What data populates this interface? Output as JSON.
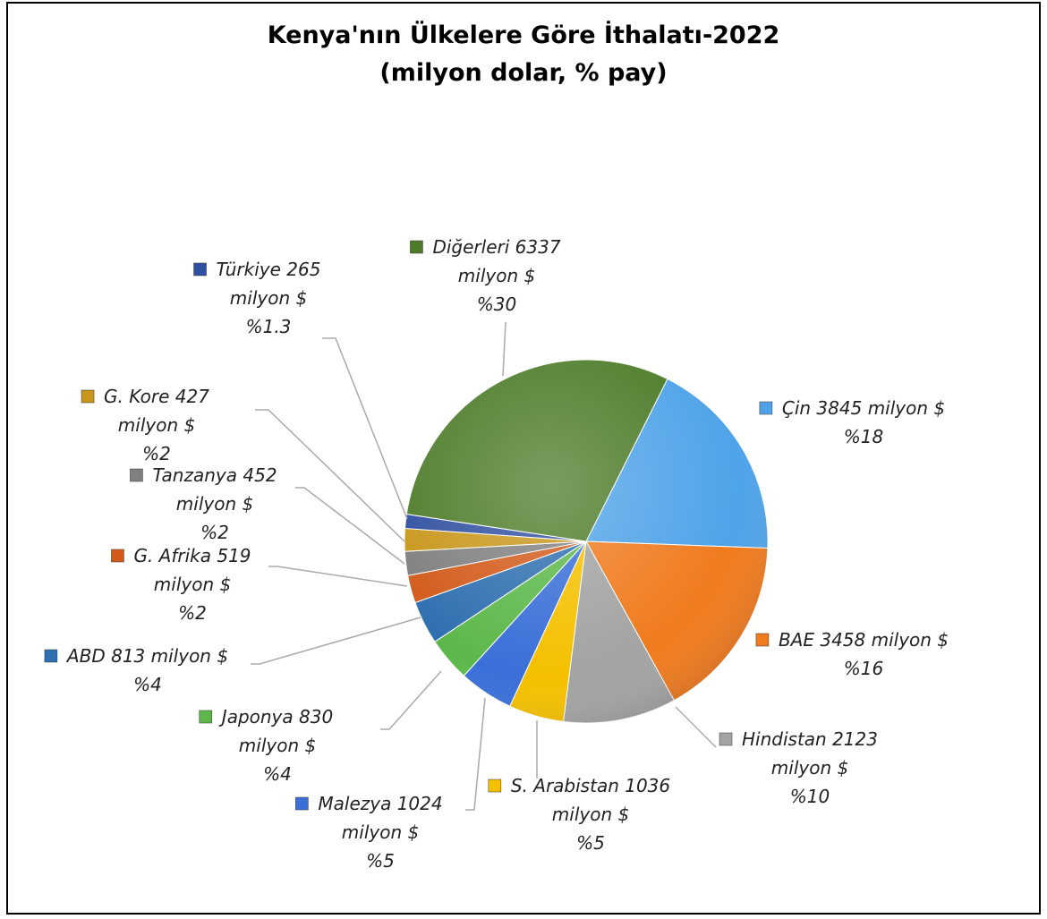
{
  "chart_data": {
    "type": "pie",
    "title": [
      "Kenya'nın Ülkelere Göre İthalatı-2022",
      "(milyon dolar, % pay)"
    ],
    "categories": [
      "Çin",
      "BAE",
      "Hindistan",
      "S. Arabistan",
      "Malezya",
      "Japonya",
      "ABD",
      "G. Afrika",
      "Tanzanya",
      "G. Kore",
      "Türkiye",
      "Diğerleri"
    ],
    "values": [
      3845,
      3458,
      2123,
      1036,
      1024,
      830,
      813,
      519,
      452,
      427,
      265,
      6337
    ],
    "unit": "milyon $",
    "percents": [
      18,
      16,
      10,
      5,
      5,
      4,
      4,
      2,
      2,
      2,
      1.3,
      30
    ],
    "percent_labels": [
      "%18",
      "%16",
      "%10",
      "%5",
      "%5",
      "%4",
      "%4",
      "%2",
      "%2",
      "%2",
      "%1.3",
      "%30"
    ],
    "colors": [
      "#4fa3e8",
      "#f07b1e",
      "#a3a3a3",
      "#f5c000",
      "#3a6fd8",
      "#5cb84a",
      "#2f6fb0",
      "#d25a1a",
      "#7f7f7f",
      "#c8961a",
      "#2f4fa0",
      "#4e7c2a"
    ]
  }
}
